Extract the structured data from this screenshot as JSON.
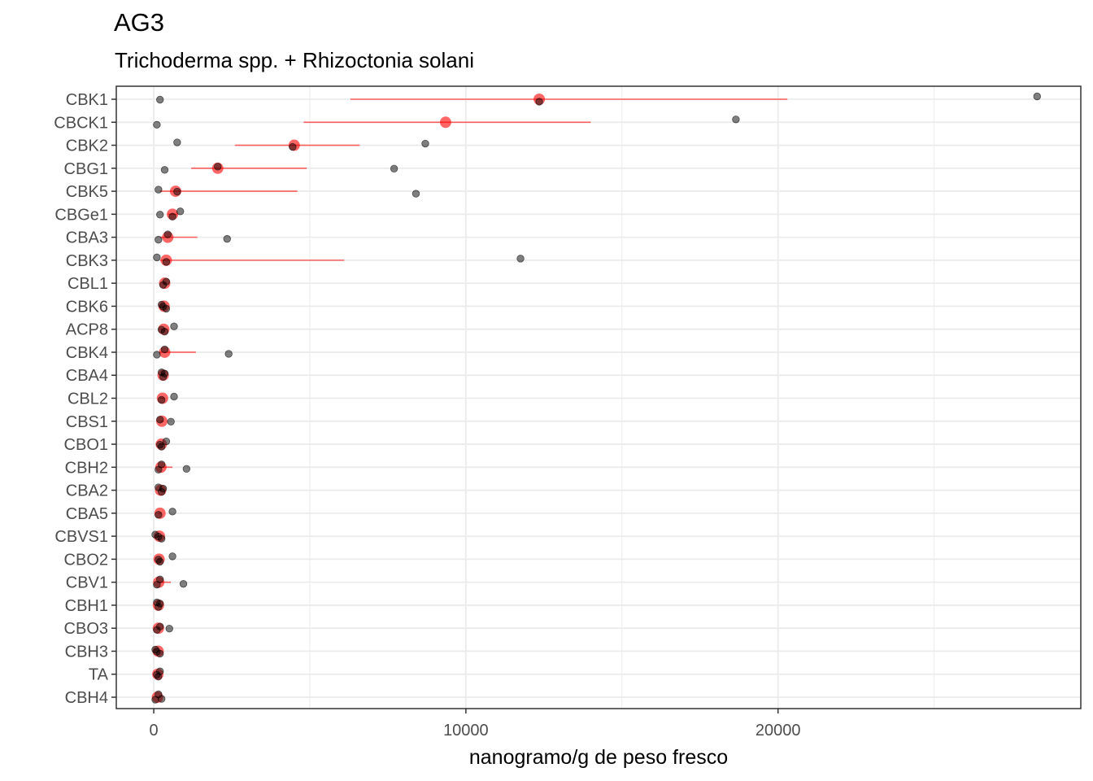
{
  "chart_data": {
    "type": "scatter",
    "title": "AG3",
    "subtitle": "Trichoderma spp. + Rhizoctonia solani",
    "xlabel": "nanogramo/g de peso fresco",
    "ylabel": "",
    "xlim": [
      -1200,
      29700
    ],
    "x_ticks": [
      0,
      10000,
      20000
    ],
    "x_tick_labels": [
      "0",
      "10000",
      "20000"
    ],
    "grid": true,
    "colors": {
      "mean": "#ff0000",
      "points": "#000000",
      "grid": "#ebebeb",
      "border": "#333333"
    },
    "categories": [
      "CBK1",
      "CBCK1",
      "CBK2",
      "CBG1",
      "CBK5",
      "CBGe1",
      "CBA3",
      "CBK3",
      "CBL1",
      "CBK6",
      "ACP8",
      "CBK4",
      "CBA4",
      "CBL2",
      "CBS1",
      "CBO1",
      "CBH2",
      "CBA2",
      "CBA5",
      "CBVS1",
      "CBO2",
      "CBV1",
      "CBH1",
      "CBO3",
      "CBH3",
      "TA",
      "CBH4"
    ],
    "summary": [
      {
        "category": "CBK1",
        "mean": 12350,
        "low": 6300,
        "high": 20300
      },
      {
        "category": "CBCK1",
        "mean": 9350,
        "low": 4800,
        "high": 14000
      },
      {
        "category": "CBK2",
        "mean": 4500,
        "low": 2600,
        "high": 6600
      },
      {
        "category": "CBG1",
        "mean": 2050,
        "low": 1200,
        "high": 4900
      },
      {
        "category": "CBK5",
        "mean": 700,
        "low": 200,
        "high": 4600
      },
      {
        "category": "CBGe1",
        "mean": 600,
        "low": 450,
        "high": 750
      },
      {
        "category": "CBA3",
        "mean": 450,
        "low": 200,
        "high": 1400
      },
      {
        "category": "CBK3",
        "mean": 400,
        "low": 200,
        "high": 6100
      },
      {
        "category": "CBL1",
        "mean": 350,
        "low": 280,
        "high": 420
      },
      {
        "category": "CBK6",
        "mean": 330,
        "low": 260,
        "high": 400
      },
      {
        "category": "ACP8",
        "mean": 320,
        "low": 220,
        "high": 420
      },
      {
        "category": "CBK4",
        "mean": 350,
        "low": 200,
        "high": 1350
      },
      {
        "category": "CBA4",
        "mean": 300,
        "low": 240,
        "high": 360
      },
      {
        "category": "CBL2",
        "mean": 280,
        "low": 200,
        "high": 360
      },
      {
        "category": "CBS1",
        "mean": 260,
        "low": 200,
        "high": 320
      },
      {
        "category": "CBO1",
        "mean": 240,
        "low": 190,
        "high": 290
      },
      {
        "category": "CBH2",
        "mean": 230,
        "low": 150,
        "high": 600
      },
      {
        "category": "CBA2",
        "mean": 220,
        "low": 170,
        "high": 270
      },
      {
        "category": "CBA5",
        "mean": 200,
        "low": 150,
        "high": 250
      },
      {
        "category": "CBVS1",
        "mean": 180,
        "low": 130,
        "high": 230
      },
      {
        "category": "CBO2",
        "mean": 170,
        "low": 130,
        "high": 210
      },
      {
        "category": "CBV1",
        "mean": 160,
        "low": 100,
        "high": 550
      },
      {
        "category": "CBH1",
        "mean": 150,
        "low": 110,
        "high": 190
      },
      {
        "category": "CBO3",
        "mean": 150,
        "low": 110,
        "high": 190
      },
      {
        "category": "CBH3",
        "mean": 140,
        "low": 100,
        "high": 180
      },
      {
        "category": "TA",
        "mean": 130,
        "low": 90,
        "high": 170
      },
      {
        "category": "CBH4",
        "mean": 120,
        "low": 80,
        "high": 160
      }
    ],
    "points": [
      {
        "category": "CBK1",
        "x": [
          200,
          12350,
          28300
        ]
      },
      {
        "category": "CBCK1",
        "x": [
          100,
          18650
        ]
      },
      {
        "category": "CBK2",
        "x": [
          750,
          4450,
          8700
        ]
      },
      {
        "category": "CBG1",
        "x": [
          350,
          2050,
          7700
        ]
      },
      {
        "category": "CBK5",
        "x": [
          150,
          750,
          8400
        ]
      },
      {
        "category": "CBGe1",
        "x": [
          200,
          600,
          850
        ]
      },
      {
        "category": "CBA3",
        "x": [
          150,
          450,
          2350
        ]
      },
      {
        "category": "CBK3",
        "x": [
          100,
          400,
          11750
        ]
      },
      {
        "category": "CBL1",
        "x": [
          300,
          400
        ]
      },
      {
        "category": "CBK6",
        "x": [
          250,
          300,
          400
        ]
      },
      {
        "category": "ACP8",
        "x": [
          250,
          350,
          650
        ]
      },
      {
        "category": "CBK4",
        "x": [
          100,
          350,
          2400
        ]
      },
      {
        "category": "CBA4",
        "x": [
          250,
          300,
          350
        ]
      },
      {
        "category": "CBL2",
        "x": [
          250,
          650
        ]
      },
      {
        "category": "CBS1",
        "x": [
          200,
          550
        ]
      },
      {
        "category": "CBO1",
        "x": [
          200,
          250,
          400
        ]
      },
      {
        "category": "CBH2",
        "x": [
          150,
          250,
          1050
        ]
      },
      {
        "category": "CBA2",
        "x": [
          150,
          250,
          300
        ]
      },
      {
        "category": "CBA5",
        "x": [
          150,
          600
        ]
      },
      {
        "category": "CBVS1",
        "x": [
          50,
          150,
          250
        ]
      },
      {
        "category": "CBO2",
        "x": [
          150,
          200,
          600
        ]
      },
      {
        "category": "CBV1",
        "x": [
          100,
          200,
          950
        ]
      },
      {
        "category": "CBH1",
        "x": [
          100,
          150,
          200
        ]
      },
      {
        "category": "CBO3",
        "x": [
          100,
          200,
          500
        ]
      },
      {
        "category": "CBH3",
        "x": [
          50,
          100,
          200
        ]
      },
      {
        "category": "TA",
        "x": [
          100,
          150,
          200
        ]
      },
      {
        "category": "CBH4",
        "x": [
          50,
          150,
          250
        ]
      }
    ]
  }
}
